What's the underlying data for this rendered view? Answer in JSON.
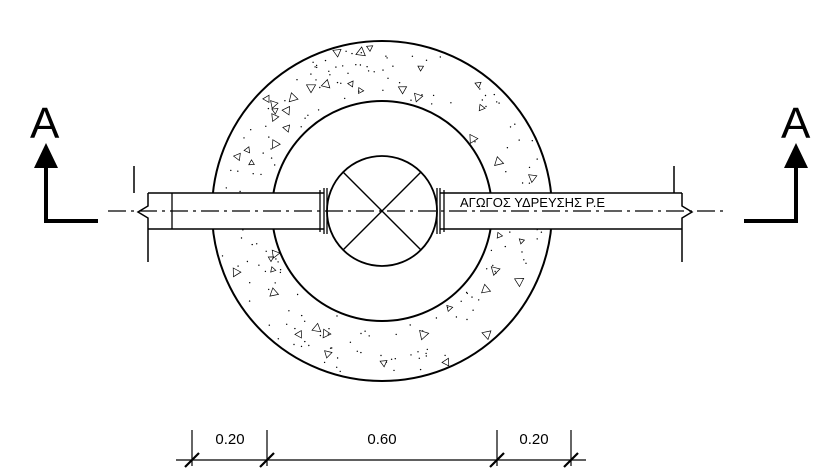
{
  "section_marks": {
    "left_letter": "A",
    "right_letter": "A"
  },
  "pipe": {
    "label": "ΑΓΩΓΟΣ ΥΔΡΕΥΣΗΣ Ρ.Ε"
  },
  "dimensions": {
    "wall_left": "0.20",
    "inner": "0.60",
    "wall_right": "0.20"
  }
}
